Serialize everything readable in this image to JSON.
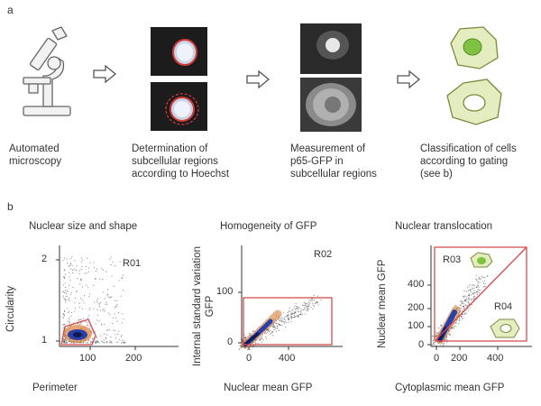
{
  "panel_a": {
    "letter": "a",
    "steps": [
      {
        "caption": "Automated\nmicroscopy",
        "icon": "microscope-icon"
      },
      {
        "caption": "Determination of\nsubcellular regions\naccording to Hoechst",
        "icon": "hoechst-nucleus-images"
      },
      {
        "caption": "Measurement of\np65-GFP in\nsubcellular regions",
        "icon": "p65-gfp-images"
      },
      {
        "caption": "Classification of cells\naccording to gating\n(see b)",
        "icon": "classified-cells-icon"
      }
    ],
    "arrow_icon": "right-arrow-icon"
  },
  "panel_b": {
    "letter": "b",
    "colors": {
      "gate": "#d84a4a",
      "dots": "#222222",
      "density_core": "#1a2e8c",
      "cell_fill": "#dfe9b8",
      "cell_stroke": "#7a8a3a"
    },
    "plots": [
      {
        "title": "Nuclear size and shape",
        "xlabel": "Perimeter",
        "ylabel": "Circularity",
        "x_ticks": [
          "100",
          "200"
        ],
        "y_ticks": [
          "1",
          "2"
        ],
        "regions": [
          "R01"
        ]
      },
      {
        "title": "Homogeneity of GFP",
        "xlabel": "Nuclear mean GFP",
        "ylabel": "Internal standard variation\nGFP",
        "x_ticks": [
          "0",
          "400"
        ],
        "y_ticks": [
          "0",
          "100"
        ],
        "regions": [
          "R02"
        ]
      },
      {
        "title": "Nuclear translocation",
        "xlabel": "Cytoplasmic mean GFP",
        "ylabel": "Nuclear mean GFP",
        "x_ticks": [
          "0",
          "200",
          "400"
        ],
        "y_ticks": [
          "0",
          "100",
          "200",
          "400"
        ],
        "regions": [
          "R03",
          "R04"
        ]
      }
    ]
  }
}
